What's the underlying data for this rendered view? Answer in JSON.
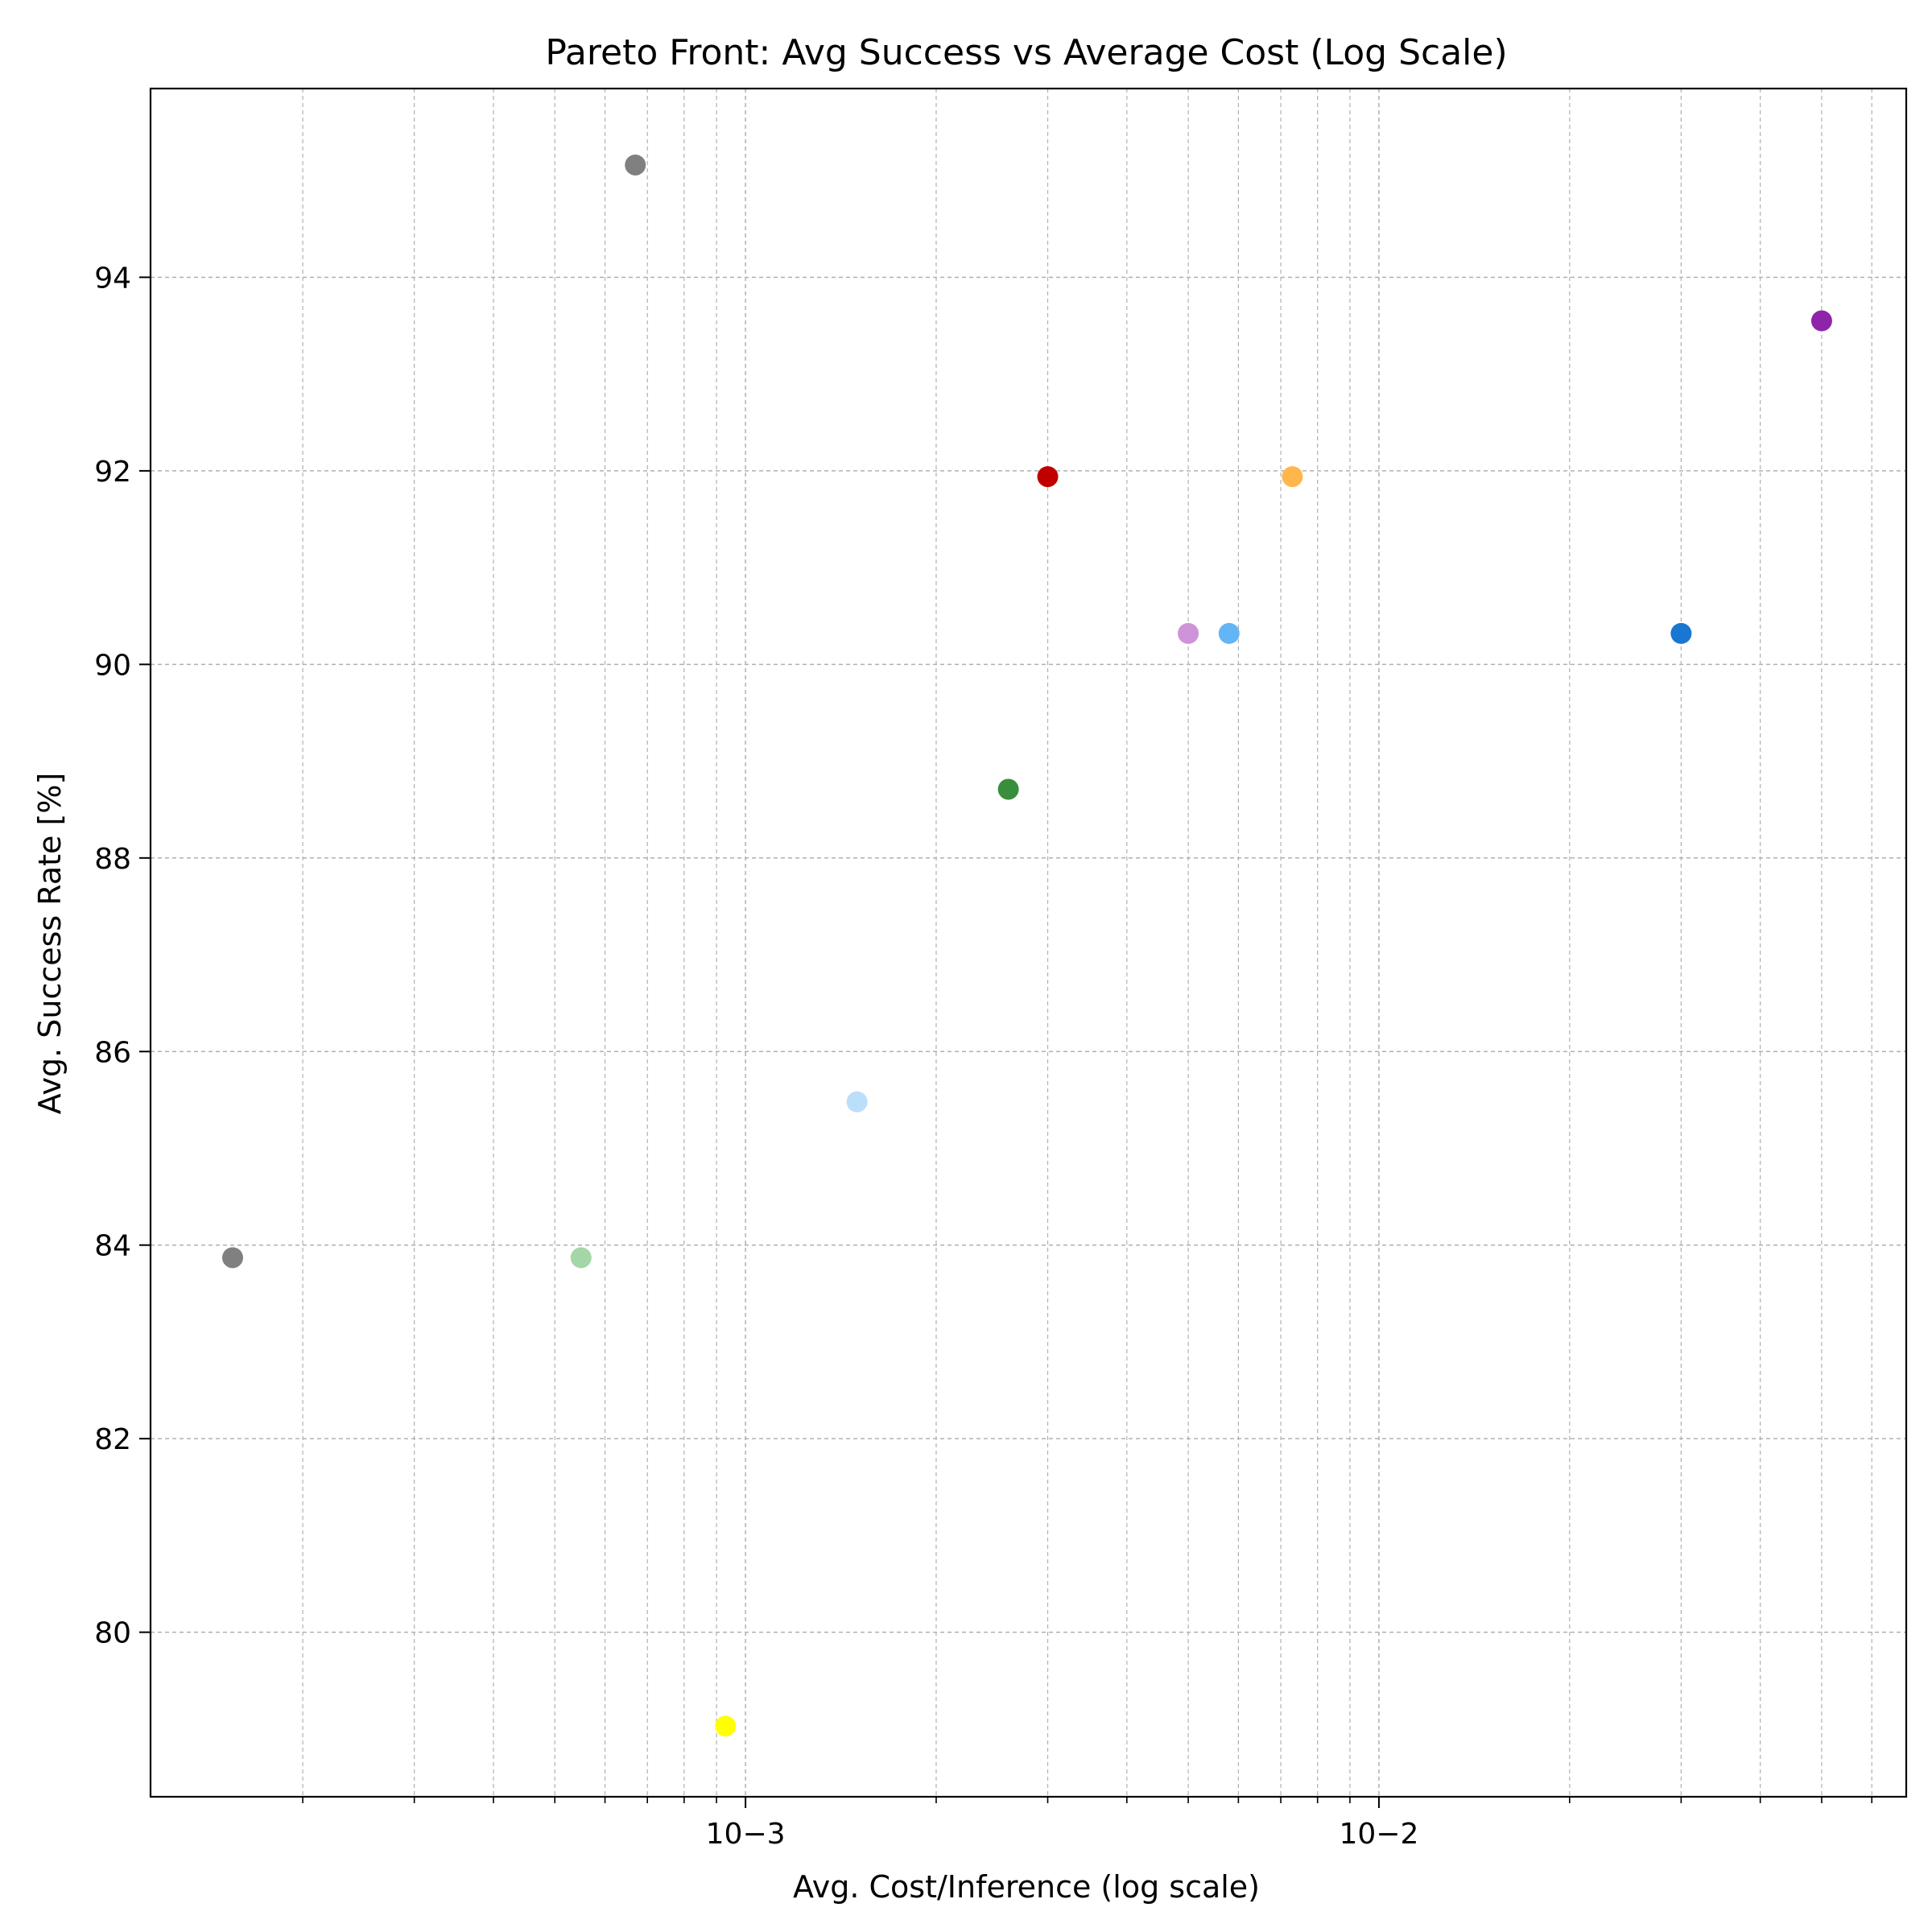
{
  "chart_data": {
    "type": "scatter",
    "title": "Pareto Front: Avg Success vs Average Cost (Log Scale)",
    "xlabel": "Avg. Cost/Inference (log scale)",
    "ylabel": "Avg. Success Rate [%]",
    "xscale": "log",
    "xlim": [
      0.000115,
      0.068
    ],
    "ylim": [
      78.3,
      95.95
    ],
    "grid": true,
    "x_ticks": [
      {
        "value": 0.001,
        "label": "10−3"
      },
      {
        "value": 0.01,
        "label": "10−2"
      }
    ],
    "y_ticks": [
      80,
      82,
      84,
      86,
      88,
      90,
      92,
      94
    ],
    "points": [
      {
        "x": 0.000155,
        "y": 83.87,
        "color": "#808080"
      },
      {
        "x": 0.00055,
        "y": 83.87,
        "color": "#a5d6a7"
      },
      {
        "x": 0.00067,
        "y": 95.16,
        "color": "#808080"
      },
      {
        "x": 0.00093,
        "y": 79.03,
        "color": "#ffff00"
      },
      {
        "x": 0.0015,
        "y": 85.48,
        "color": "#bbdefb"
      },
      {
        "x": 0.0026,
        "y": 88.71,
        "color": "#388e3c"
      },
      {
        "x": 0.003,
        "y": 91.94,
        "color": "#c00000"
      },
      {
        "x": 0.005,
        "y": 90.32,
        "color": "#ce93d8"
      },
      {
        "x": 0.0058,
        "y": 90.32,
        "color": "#64b5f6"
      },
      {
        "x": 0.0073,
        "y": 91.94,
        "color": "#ffb74d"
      },
      {
        "x": 0.03,
        "y": 90.32,
        "color": "#1976d2"
      },
      {
        "x": 0.05,
        "y": 93.55,
        "color": "#8e24aa"
      }
    ]
  }
}
